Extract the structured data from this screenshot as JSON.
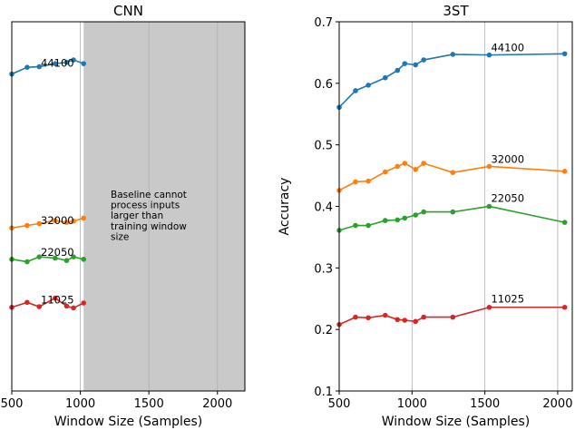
{
  "chart_data": [
    {
      "type": "line",
      "title": "CNN",
      "xlabel": "Window Size (Samples)",
      "ylabel": "",
      "xlim": [
        500,
        2200
      ],
      "ylim": [
        0.1,
        0.7
      ],
      "x_ticks": [
        500,
        1000,
        1500,
        2000
      ],
      "x_tick_labels": [
        "500",
        "1000",
        "1500",
        "2000"
      ],
      "y_ticks": [],
      "y_tick_labels": [],
      "shaded_x_range": [
        1024,
        2200
      ],
      "annotation": [
        "Baseline cannot",
        "process inputs",
        "larger than",
        "training window",
        "size"
      ],
      "x": [
        500,
        612,
        700,
        816,
        900,
        950,
        1024
      ],
      "series": [
        {
          "name": "44100",
          "color": "#1f77b4",
          "values": [
            0.615,
            0.626,
            0.627,
            0.632,
            0.634,
            0.638,
            0.632
          ]
        },
        {
          "name": "32000",
          "color": "#ff7f0e",
          "values": [
            0.365,
            0.369,
            0.372,
            0.377,
            0.374,
            0.376,
            0.381
          ]
        },
        {
          "name": "22050",
          "color": "#2ca02c",
          "values": [
            0.314,
            0.31,
            0.318,
            0.316,
            0.312,
            0.318,
            0.314
          ]
        },
        {
          "name": "11025",
          "color": "#d62728",
          "values": [
            0.236,
            0.244,
            0.237,
            0.251,
            0.238,
            0.235,
            0.243
          ]
        }
      ]
    },
    {
      "type": "line",
      "title": "3ST",
      "xlabel": "Window Size (Samples)",
      "ylabel": "Accuracy",
      "xlim": [
        500,
        2100
      ],
      "ylim": [
        0.1,
        0.7
      ],
      "x_ticks": [
        500,
        1000,
        1500,
        2000
      ],
      "x_tick_labels": [
        "500",
        "1000",
        "1500",
        "2000"
      ],
      "y_ticks": [
        0.1,
        0.2,
        0.3,
        0.4,
        0.5,
        0.6,
        0.7
      ],
      "y_tick_labels": [
        "0.1",
        "0.2",
        "0.3",
        "0.4",
        "0.5",
        "0.6",
        "0.7"
      ],
      "x": [
        500,
        612,
        700,
        816,
        900,
        950,
        1024,
        1080,
        1280,
        1530,
        2048
      ],
      "series": [
        {
          "name": "44100",
          "color": "#1f77b4",
          "values": [
            0.561,
            0.588,
            0.597,
            0.609,
            0.621,
            0.632,
            0.63,
            0.638,
            0.647,
            0.646,
            0.648
          ]
        },
        {
          "name": "32000",
          "color": "#ff7f0e",
          "values": [
            0.426,
            0.44,
            0.441,
            0.456,
            0.465,
            0.47,
            0.46,
            0.47,
            0.455,
            0.465,
            0.457
          ]
        },
        {
          "name": "22050",
          "color": "#2ca02c",
          "values": [
            0.361,
            0.369,
            0.369,
            0.377,
            0.378,
            0.381,
            0.386,
            0.391,
            0.391,
            0.4,
            0.374
          ]
        },
        {
          "name": "11025",
          "color": "#d62728",
          "values": [
            0.208,
            0.22,
            0.219,
            0.223,
            0.216,
            0.215,
            0.213,
            0.22,
            0.22,
            0.236,
            0.236
          ]
        }
      ]
    }
  ]
}
